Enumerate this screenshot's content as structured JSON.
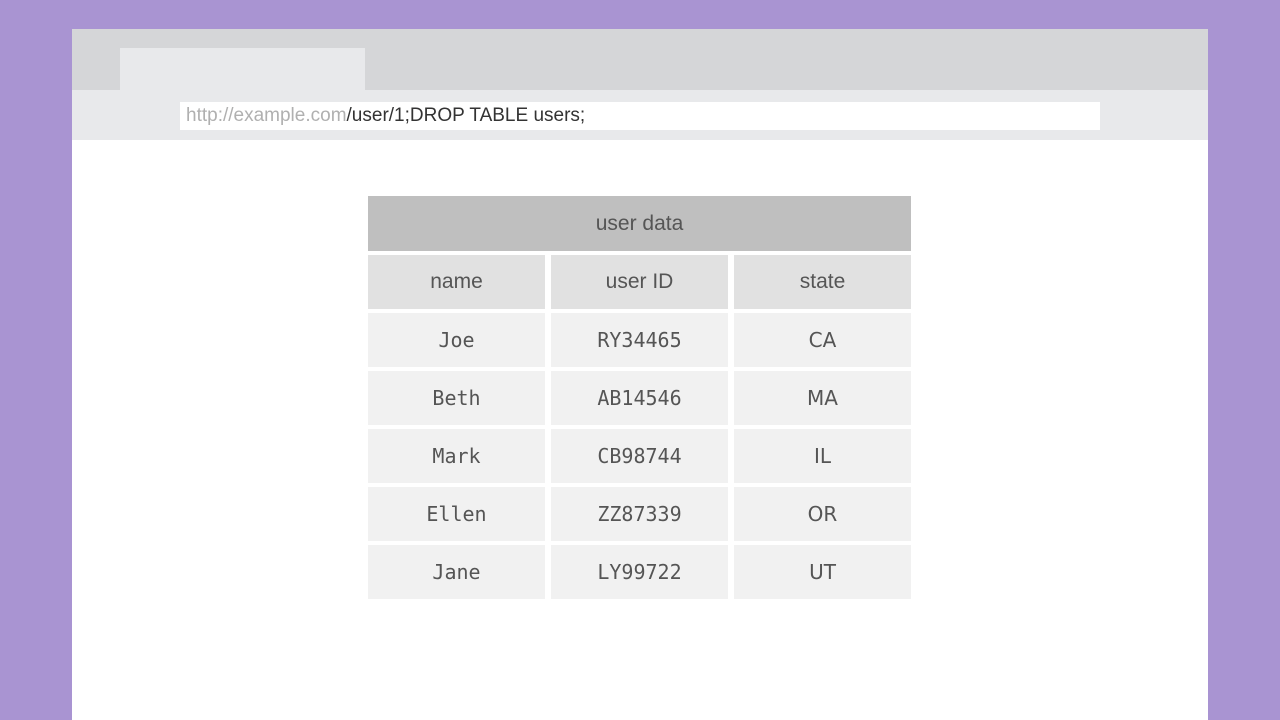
{
  "browser": {
    "url_host": "http://example.com",
    "url_path": "/user/1;DROP TABLE users;"
  },
  "table": {
    "title": "user data",
    "columns": [
      "name",
      "user ID",
      "state"
    ],
    "rows": [
      [
        "Joe",
        "RY34465",
        "CA"
      ],
      [
        "Beth",
        "AB14546",
        "MA"
      ],
      [
        "Mark",
        "CB98744",
        "IL"
      ],
      [
        "Ellen",
        "ZZ87339",
        "OR"
      ],
      [
        "Jane",
        "LY99722",
        "UT"
      ]
    ]
  },
  "colors": {
    "background": "#a994d2",
    "title_row": "#bfbfbf",
    "header_row": "#e1e1e1",
    "data_row": "#f1f1f1"
  }
}
